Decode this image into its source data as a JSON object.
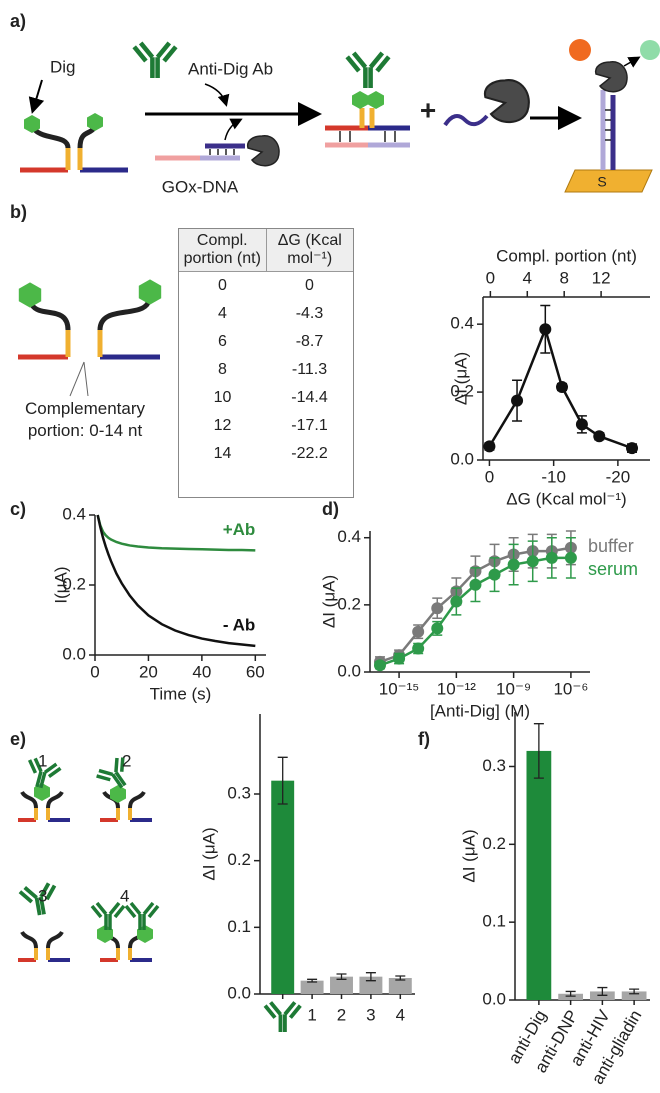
{
  "panel_labels": [
    "a)",
    "b)",
    "c)",
    "d)",
    "e)",
    "f)"
  ],
  "scheme_a": {
    "dig": "Dig",
    "antibody": "Anti-Dig Ab",
    "gox": "GOx-DNA",
    "plus": "+",
    "surface": "S"
  },
  "scheme_b": {
    "caption": "Complementary portion: 0-14 nt"
  },
  "table": {
    "header": [
      "Compl. portion (nt)",
      "ΔG (Kcal mol⁻¹)"
    ],
    "rows": [
      [
        0,
        0
      ],
      [
        4,
        -4.3
      ],
      [
        6,
        -8.7
      ],
      [
        8,
        -11.3
      ],
      [
        10,
        -14.4
      ],
      [
        12,
        -17.1
      ],
      [
        14,
        -22.2
      ]
    ]
  },
  "scheme_e": {
    "labels": [
      "1",
      "2",
      "3",
      "4"
    ]
  },
  "chart_data": [
    {
      "type": "line",
      "x": [
        0,
        -4.3,
        -8.7,
        -11.3,
        -14.4,
        -17.1,
        -22.2
      ],
      "xlim": [
        1,
        -25
      ],
      "xticks": [
        0,
        -10,
        -20
      ],
      "x2lim": [
        -0.8,
        17.3
      ],
      "x2ticks": [
        0,
        4,
        8,
        12
      ],
      "x2label": "Compl. portion (nt)",
      "xlabel": "ΔG (Kcal mol⁻¹)",
      "ylabel": "ΔI (μA)",
      "ylim": [
        0,
        0.48
      ],
      "yticks": [
        {
          "value": 0,
          "label": "0.0"
        },
        0.2,
        0.4
      ],
      "markers": true,
      "series": [
        {
          "color": "#111111",
          "values": [
            0.04,
            0.175,
            0.385,
            0.215,
            0.105,
            0.07,
            0.035
          ],
          "errors": [
            0.01,
            0.06,
            0.07,
            0.01,
            0.025,
            0.01,
            0.012
          ]
        }
      ]
    },
    {
      "type": "line",
      "x": [
        1,
        2,
        3,
        4,
        5,
        6,
        8,
        10,
        13,
        16,
        20,
        25,
        30,
        35,
        40,
        45,
        50,
        55,
        60
      ],
      "xlim": [
        0,
        64
      ],
      "xticks": [
        0,
        20,
        40,
        60
      ],
      "xlabel": "Time (s)",
      "ylabel": "I(μA)",
      "ylim": [
        0,
        0.4
      ],
      "yticks": [
        {
          "value": 0,
          "label": "0.0"
        },
        0.2,
        0.4
      ],
      "markers": false,
      "series": [
        {
          "name": "+Ab",
          "color": "#2e8b3e",
          "values": [
            0.4,
            0.37,
            0.352,
            0.342,
            0.335,
            0.33,
            0.323,
            0.318,
            0.313,
            0.31,
            0.307,
            0.305,
            0.304,
            0.303,
            0.302,
            0.301,
            0.3,
            0.3,
            0.299
          ]
        },
        {
          "name": "- Ab",
          "color": "#111111",
          "values": [
            0.4,
            0.365,
            0.335,
            0.31,
            0.288,
            0.268,
            0.233,
            0.205,
            0.17,
            0.142,
            0.113,
            0.088,
            0.07,
            0.057,
            0.047,
            0.04,
            0.034,
            0.03,
            0.026
          ]
        }
      ]
    },
    {
      "type": "line",
      "xscale": "log",
      "x": [
        1e-16,
        1e-15,
        1e-14,
        1e-13,
        1e-12,
        1e-11,
        1e-10,
        1e-09,
        1e-08,
        1e-07,
        1e-06
      ],
      "xlim": [
        3e-17,
        1e-05
      ],
      "xticks": [
        {
          "value": 1e-15,
          "label": "10⁻¹⁵"
        },
        {
          "value": 1e-12,
          "label": "10⁻¹²"
        },
        {
          "value": 1e-09,
          "label": "10⁻⁹"
        },
        {
          "value": 1e-06,
          "label": "10⁻⁶"
        }
      ],
      "xlabel": "[Anti-Dig] (M)",
      "ylabel": "ΔI (μA)",
      "ylim": [
        0,
        0.42
      ],
      "yticks": [
        {
          "value": 0,
          "label": "0.0"
        },
        0.2,
        0.4
      ],
      "markers": true,
      "legend": "top-right",
      "series": [
        {
          "name": "buffer",
          "color": "#7a7a7a",
          "values": [
            0.03,
            0.05,
            0.12,
            0.19,
            0.24,
            0.3,
            0.33,
            0.35,
            0.36,
            0.36,
            0.37
          ],
          "errors": [
            0.015,
            0.015,
            0.02,
            0.03,
            0.04,
            0.045,
            0.05,
            0.05,
            0.05,
            0.05,
            0.05
          ]
        },
        {
          "name": "serum",
          "color": "#2e9a4a",
          "values": [
            0.02,
            0.04,
            0.07,
            0.13,
            0.21,
            0.26,
            0.29,
            0.32,
            0.33,
            0.34,
            0.34
          ],
          "errors": [
            0.01,
            0.015,
            0.015,
            0.02,
            0.04,
            0.05,
            0.05,
            0.06,
            0.06,
            0.06,
            0.06
          ]
        }
      ]
    },
    {
      "type": "bar",
      "categories": [
        null,
        "1",
        "2",
        "3",
        "4"
      ],
      "values": [
        0.32,
        0.02,
        0.026,
        0.026,
        0.024
      ],
      "errors": [
        0.035,
        0.002,
        0.004,
        0.006,
        0.003
      ],
      "colors": [
        "#1e8a3a",
        "#a6a6a6",
        "#a6a6a6",
        "#a6a6a6",
        "#a6a6a6"
      ],
      "ylabel": "ΔI (μA)",
      "ylim": [
        0,
        0.42
      ],
      "yticks": [
        {
          "value": 0,
          "label": "0.0"
        },
        0.1,
        0.2,
        0.3
      ]
    },
    {
      "type": "bar",
      "categories": [
        "anti-Dig",
        "anti-DNP",
        "anti-HIV",
        "anti-gliadin"
      ],
      "values": [
        0.32,
        0.008,
        0.011,
        0.011
      ],
      "errors": [
        0.035,
        0.003,
        0.005,
        0.003
      ],
      "colors": [
        "#1e8a3a",
        "#a6a6a6",
        "#a6a6a6",
        "#a6a6a6"
      ],
      "ylabel": "ΔI (μA)",
      "ylim": [
        0,
        0.37
      ],
      "yticks": [
        {
          "value": 0,
          "label": "0.0"
        },
        0.1,
        0.2,
        0.3
      ]
    }
  ]
}
